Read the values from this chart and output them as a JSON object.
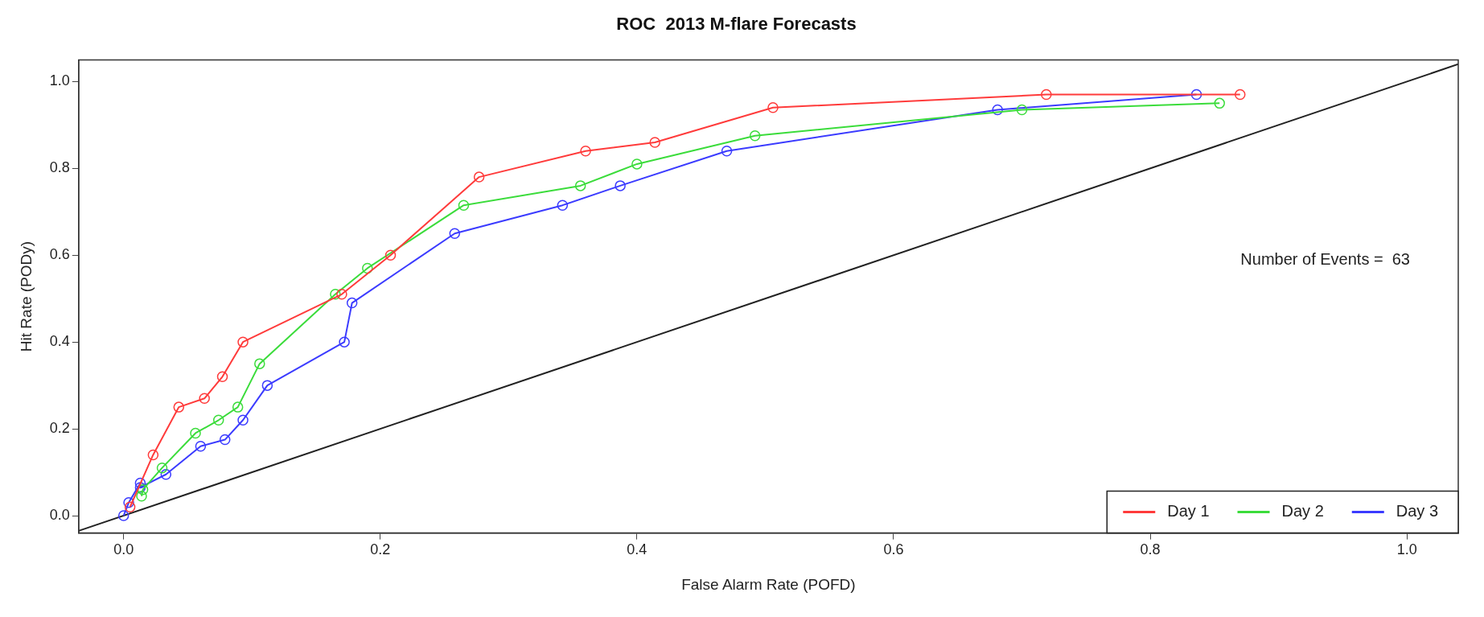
{
  "chart_data": {
    "type": "line",
    "title": "ROC  2013 M-flare Forecasts",
    "xlabel": "False Alarm Rate (POFD)",
    "ylabel": "Hit Rate (PODy)",
    "xlim": [
      -0.035,
      1.04
    ],
    "ylim": [
      -0.04,
      1.05
    ],
    "xticks": [
      {
        "value": 0,
        "label": "0.0"
      },
      0.2,
      0.4,
      0.6,
      0.8,
      {
        "value": 1,
        "label": "1.0"
      }
    ],
    "yticks": [
      {
        "value": 0,
        "label": "0.0"
      },
      0.2,
      0.4,
      0.6,
      0.8,
      {
        "value": 1,
        "label": "1.0"
      }
    ],
    "grid": false,
    "legend": "bottom right",
    "marker": "circle",
    "line_style": "solid",
    "annotations": [
      "Number of Events =  63"
    ],
    "series": [
      {
        "name": "Day 1",
        "color": "#ff3b3b",
        "x": [
          0.005,
          0.023,
          0.043,
          0.063,
          0.077,
          0.093,
          0.17,
          0.208,
          0.277,
          0.36,
          0.414,
          0.506,
          0.719,
          0.87
        ],
        "values": [
          0.02,
          0.14,
          0.25,
          0.27,
          0.32,
          0.4,
          0.51,
          0.6,
          0.78,
          0.84,
          0.86,
          0.94,
          0.97,
          0.97
        ]
      },
      {
        "name": "Day 2",
        "color": "#3bdc3b",
        "x": [
          0.014,
          0.015,
          0.03,
          0.056,
          0.074,
          0.089,
          0.106,
          0.165,
          0.19,
          0.265,
          0.356,
          0.4,
          0.492,
          0.7,
          0.854
        ],
        "values": [
          0.045,
          0.06,
          0.11,
          0.19,
          0.22,
          0.25,
          0.35,
          0.51,
          0.57,
          0.715,
          0.76,
          0.81,
          0.875,
          0.935,
          0.95
        ]
      },
      {
        "name": "Day 3",
        "color": "#3b3bff",
        "x": [
          0,
          0.004,
          0.013,
          0.013,
          0.033,
          0.06,
          0.079,
          0.093,
          0.112,
          0.172,
          0.178,
          0.258,
          0.342,
          0.387,
          0.47,
          0.681,
          0.836
        ],
        "values": [
          0,
          0.03,
          0.075,
          0.065,
          0.095,
          0.16,
          0.175,
          0.22,
          0.3,
          0.4,
          0.49,
          0.65,
          0.715,
          0.76,
          0.84,
          0.935,
          0.97
        ]
      },
      {
        "type": "line",
        "color": "#222222",
        "marker": "none",
        "x": [
          -0.035,
          1.04
        ],
        "values": [
          -0.035,
          1.04
        ]
      }
    ]
  }
}
